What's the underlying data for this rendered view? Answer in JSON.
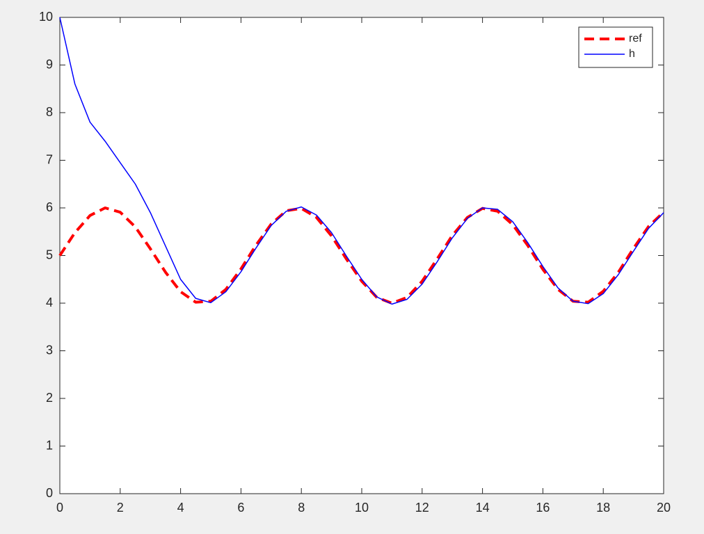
{
  "chart_data": {
    "type": "line",
    "x": [
      0,
      0.5,
      1,
      1.5,
      2,
      2.5,
      3,
      3.5,
      4,
      4.5,
      5,
      5.5,
      6,
      6.5,
      7,
      7.5,
      8,
      8.5,
      9,
      9.5,
      10,
      10.5,
      11,
      11.5,
      12,
      12.5,
      13,
      13.5,
      14,
      14.5,
      15,
      15.5,
      16,
      16.5,
      17,
      17.5,
      18,
      18.5,
      19,
      19.5,
      20
    ],
    "series": [
      {
        "name": "ref",
        "color": "#ff0000",
        "dashed": true,
        "values": [
          5.0,
          5.48,
          5.84,
          6.0,
          5.91,
          5.6,
          5.14,
          4.65,
          4.24,
          4.02,
          4.04,
          4.29,
          4.72,
          5.22,
          5.66,
          5.94,
          5.99,
          5.8,
          5.41,
          4.92,
          4.46,
          4.12,
          4.0,
          4.12,
          4.46,
          4.93,
          5.42,
          5.8,
          5.99,
          5.93,
          5.65,
          5.21,
          4.71,
          4.29,
          4.04,
          4.02,
          4.25,
          4.65,
          5.15,
          5.61,
          5.91
        ]
      },
      {
        "name": "h",
        "color": "#0000ff",
        "dashed": false,
        "values": [
          10.0,
          8.6,
          7.8,
          7.4,
          6.95,
          6.5,
          5.9,
          5.2,
          4.5,
          4.1,
          4.01,
          4.24,
          4.66,
          5.16,
          5.63,
          5.93,
          6.02,
          5.85,
          5.48,
          4.98,
          4.5,
          4.13,
          3.98,
          4.08,
          4.4,
          4.87,
          5.37,
          5.78,
          6.0,
          5.97,
          5.71,
          5.27,
          4.77,
          4.32,
          4.04,
          3.99,
          4.2,
          4.6,
          5.09,
          5.57,
          5.9
        ]
      }
    ],
    "xlim": [
      0,
      20
    ],
    "xticks": [
      0,
      2,
      4,
      6,
      8,
      10,
      12,
      14,
      16,
      18,
      20
    ],
    "ylim": [
      0,
      10
    ],
    "yticks": [
      0,
      1,
      2,
      3,
      4,
      5,
      6,
      7,
      8,
      9,
      10
    ],
    "legend": "northeast"
  }
}
